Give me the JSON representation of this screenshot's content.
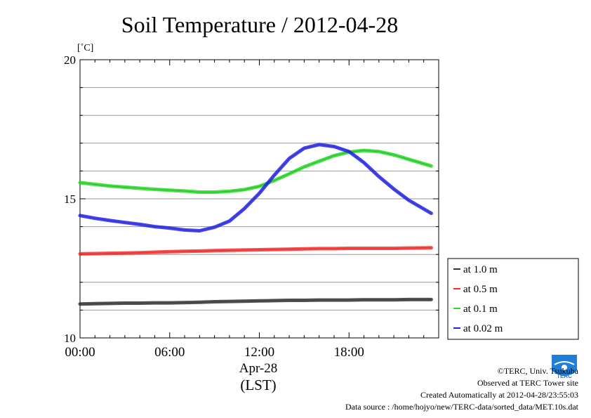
{
  "chart_data": {
    "type": "line",
    "title": "Soil Temperature / 2012-04-28",
    "ylabel": "[˚C]",
    "xlabel_date": "Apr-28",
    "xlabel_zone": "(LST)",
    "xlim": [
      0,
      24
    ],
    "ylim": [
      10,
      20
    ],
    "x_ticks": [
      0,
      6,
      12,
      18
    ],
    "x_tick_labels": [
      "00:00",
      "06:00",
      "12:00",
      "18:00"
    ],
    "y_ticks": [
      10,
      15,
      20
    ],
    "y_tick_labels": [
      "10",
      "15",
      "20"
    ],
    "grid": true,
    "legend_position": "right",
    "x": [
      0,
      1,
      2,
      3,
      4,
      5,
      6,
      7,
      8,
      9,
      10,
      11,
      12,
      13,
      14,
      15,
      16,
      17,
      18,
      19,
      20,
      21,
      22,
      23.5
    ],
    "series": [
      {
        "name": "at 1.0 m",
        "color": "#333333",
        "values": [
          11.22,
          11.23,
          11.24,
          11.25,
          11.25,
          11.26,
          11.26,
          11.27,
          11.28,
          11.3,
          11.31,
          11.32,
          11.33,
          11.34,
          11.35,
          11.35,
          11.36,
          11.36,
          11.36,
          11.37,
          11.37,
          11.37,
          11.38,
          11.38
        ]
      },
      {
        "name": "at 0.5 m",
        "color": "#ff2a2a",
        "values": [
          13.02,
          13.03,
          13.04,
          13.05,
          13.06,
          13.08,
          13.1,
          13.11,
          13.12,
          13.14,
          13.15,
          13.16,
          13.17,
          13.18,
          13.19,
          13.2,
          13.21,
          13.21,
          13.22,
          13.22,
          13.22,
          13.22,
          13.23,
          13.24
        ]
      },
      {
        "name": "at 0.1 m",
        "color": "#22dd22",
        "values": [
          15.58,
          15.52,
          15.46,
          15.42,
          15.38,
          15.34,
          15.31,
          15.28,
          15.24,
          15.24,
          15.27,
          15.33,
          15.45,
          15.66,
          15.9,
          16.15,
          16.35,
          16.55,
          16.68,
          16.74,
          16.7,
          16.58,
          16.42,
          16.18
        ]
      },
      {
        "name": "at 0.02 m",
        "color": "#2222ee",
        "values": [
          14.4,
          14.3,
          14.22,
          14.15,
          14.08,
          14.0,
          13.95,
          13.88,
          13.85,
          13.98,
          14.2,
          14.65,
          15.2,
          15.85,
          16.45,
          16.82,
          16.95,
          16.88,
          16.7,
          16.3,
          15.8,
          15.35,
          14.95,
          14.48
        ]
      }
    ]
  },
  "footer": {
    "copyright": "©TERC, Univ. Tsukuba",
    "observed": "Observed at TERC Tower site",
    "created": "Created Automatically at 2012-04-28/23:55:03",
    "source": "Data source : /home/hojyo/new/TERC-data/sorted_data/MET.10s.dat"
  },
  "logo": {
    "text": "TERC",
    "color": "#1e7fd8"
  }
}
